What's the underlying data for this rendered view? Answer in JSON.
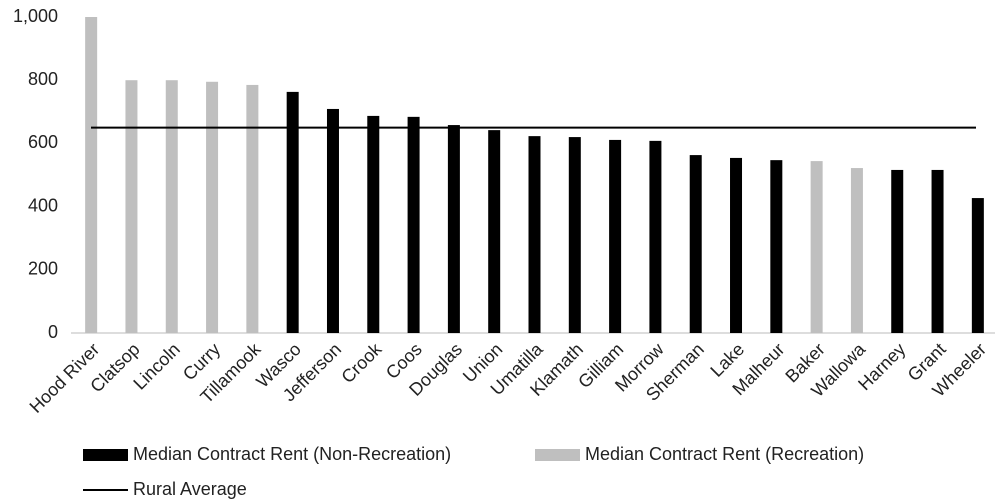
{
  "chart_data": {
    "type": "bar",
    "categories": [
      "Hood River",
      "Clatsop",
      "Lincoln",
      "Curry",
      "Tillamook",
      "Wasco",
      "Jefferson",
      "Crook",
      "Coos",
      "Douglas",
      "Union",
      "Umatilla",
      "Klamath",
      "Gilliam",
      "Morrow",
      "Sherman",
      "Lake",
      "Malheur",
      "Baker",
      "Wallowa",
      "Harney",
      "Grant",
      "Wheeler"
    ],
    "series": [
      {
        "name": "Median Contract Rent (Non-Recreation)",
        "color": "#000000",
        "values": [
          null,
          null,
          null,
          null,
          null,
          763,
          709,
          687,
          684,
          658,
          642,
          623,
          620,
          611,
          608,
          563,
          554,
          547,
          null,
          null,
          516,
          516,
          427
        ]
      },
      {
        "name": "Median Contract Rent (Recreation)",
        "color": "#bfbfbf",
        "values": [
          1000,
          800,
          800,
          795,
          785,
          null,
          null,
          null,
          null,
          null,
          null,
          null,
          null,
          null,
          null,
          null,
          null,
          null,
          544,
          522,
          null,
          null,
          null
        ]
      }
    ],
    "reference_lines": [
      {
        "name": "Rural Average",
        "value": 650,
        "color": "#000000"
      }
    ],
    "ylim": [
      0,
      1000
    ],
    "yticks": [
      0,
      200,
      400,
      600,
      800,
      {
        "value": 1000,
        "label": "1,000"
      }
    ],
    "grid": false
  }
}
